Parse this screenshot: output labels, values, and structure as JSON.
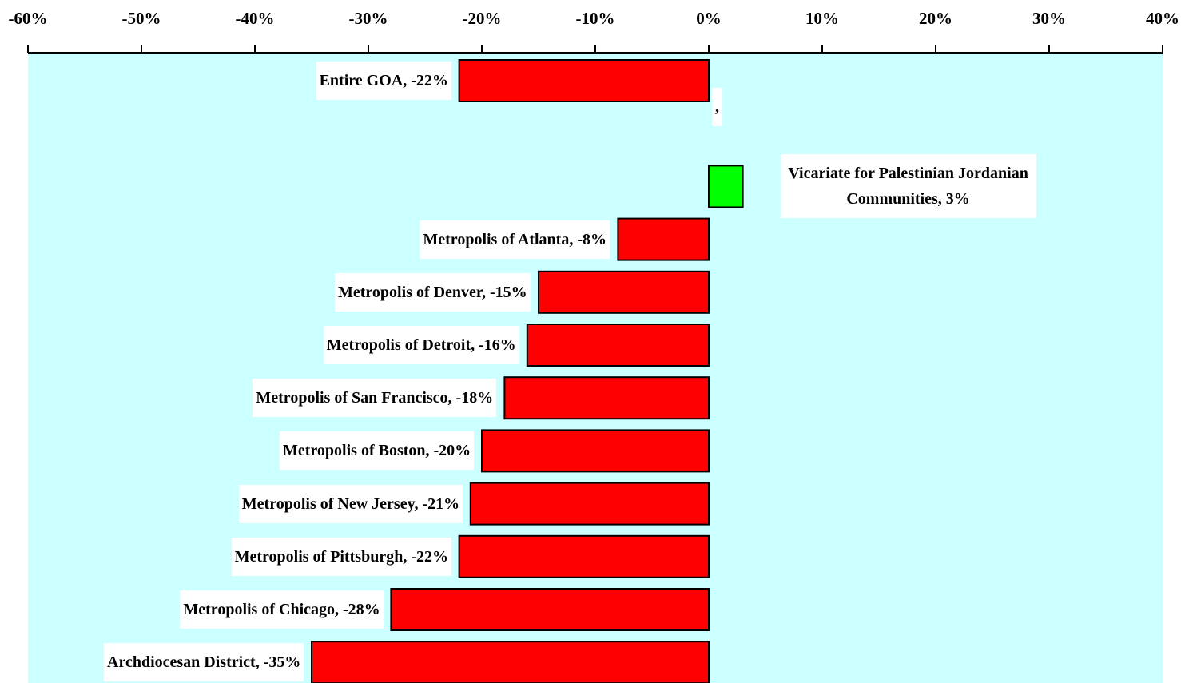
{
  "chart_data": {
    "type": "bar",
    "orientation": "horizontal",
    "values": [
      -22,
      null,
      3,
      -8,
      -15,
      -16,
      -18,
      -20,
      -21,
      -22,
      -28,
      -35
    ],
    "value_labels": [
      "Entire GOA, -22%",
      ",",
      "Vicariate for Palestinian Jordanian Communities, 3%",
      "Metropolis of Atlanta, -8%",
      "Metropolis of Denver, -15%",
      "Metropolis of Detroit, -16%",
      "Metropolis of San Francisco, -18%",
      "Metropolis of Boston, -20%",
      "Metropolis of New Jersey, -21%",
      "Metropolis of Pittsburgh, -22%",
      "Metropolis of Chicago, -28%",
      "Archdiocesan District, -35%"
    ],
    "negative_color": "#ff0000",
    "positive_color": "#00ff00",
    "background": "#ccffff",
    "xlim": [
      -60,
      40
    ],
    "xticks": [
      {
        "value": -60,
        "label": "-60%"
      },
      {
        "value": -50,
        "label": "-50%"
      },
      {
        "value": -40,
        "label": "-40%"
      },
      {
        "value": -30,
        "label": "-30%"
      },
      {
        "value": -20,
        "label": "-20%"
      },
      {
        "value": -10,
        "label": "-10%"
      },
      {
        "value": 0,
        "label": "0%"
      },
      {
        "value": 10,
        "label": "10%"
      },
      {
        "value": 20,
        "label": "20%"
      },
      {
        "value": 30,
        "label": "30%"
      },
      {
        "value": 40,
        "label": "40%"
      }
    ],
    "axis_position": "top"
  }
}
